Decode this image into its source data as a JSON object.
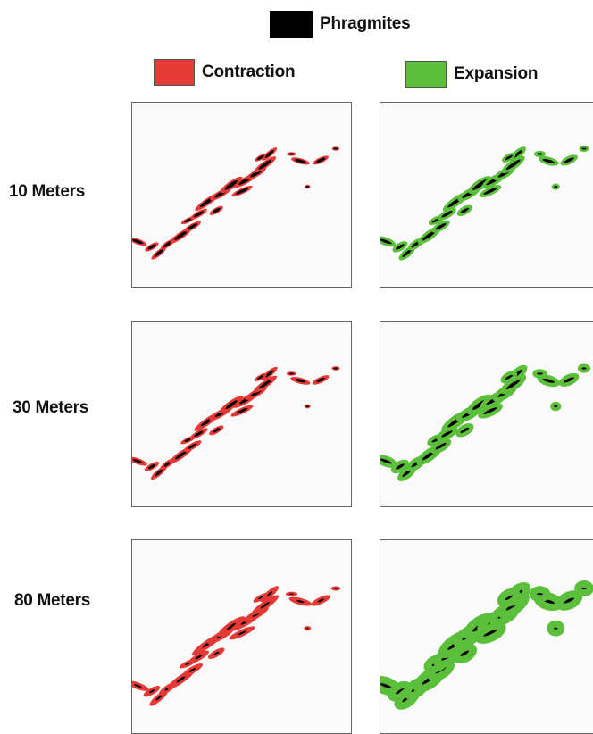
{
  "legend": {
    "phragmites": {
      "label": "Phragmites",
      "color": "#000000"
    },
    "contraction": {
      "label": "Contraction",
      "color": "#e53935"
    },
    "expansion": {
      "label": "Expansion",
      "color": "#5cbf3b"
    }
  },
  "rows": [
    {
      "label": "10 Meters",
      "buffer_m": 10
    },
    {
      "label": "30 Meters",
      "buffer_m": 30
    },
    {
      "label": "80 Meters",
      "buffer_m": 80
    }
  ],
  "columns": [
    "Contraction",
    "Expansion"
  ]
}
